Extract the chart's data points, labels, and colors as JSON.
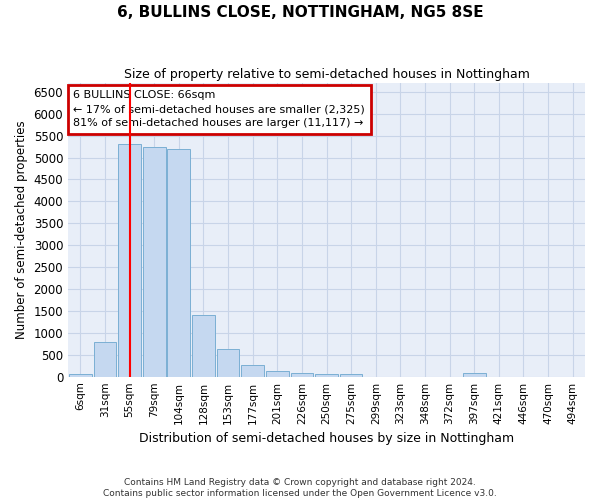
{
  "title": "6, BULLINS CLOSE, NOTTINGHAM, NG5 8SE",
  "subtitle": "Size of property relative to semi-detached houses in Nottingham",
  "xlabel": "Distribution of semi-detached houses by size in Nottingham",
  "ylabel": "Number of semi-detached properties",
  "footer_line1": "Contains HM Land Registry data © Crown copyright and database right 2024.",
  "footer_line2": "Contains public sector information licensed under the Open Government Licence v3.0.",
  "bar_color": "#c5d8f0",
  "bar_edge_color": "#7bafd4",
  "grid_color": "#c8d4e8",
  "background_color": "#e8eef8",
  "red_line_index": 2,
  "annotation_line1": "6 BULLINS CLOSE: 66sqm",
  "annotation_line2": "← 17% of semi-detached houses are smaller (2,325)",
  "annotation_line3": "81% of semi-detached houses are larger (11,117) →",
  "annotation_box_color": "#ffffff",
  "annotation_box_edge": "#cc0000",
  "categories": [
    "6sqm",
    "31sqm",
    "55sqm",
    "79sqm",
    "104sqm",
    "128sqm",
    "153sqm",
    "177sqm",
    "201sqm",
    "226sqm",
    "250sqm",
    "275sqm",
    "299sqm",
    "323sqm",
    "348sqm",
    "372sqm",
    "397sqm",
    "421sqm",
    "446sqm",
    "470sqm",
    "494sqm"
  ],
  "values": [
    50,
    790,
    5310,
    5250,
    5190,
    1410,
    630,
    260,
    130,
    80,
    70,
    60,
    0,
    0,
    0,
    0,
    80,
    0,
    0,
    0,
    0
  ],
  "ylim": [
    0,
    6700
  ],
  "yticks": [
    0,
    500,
    1000,
    1500,
    2000,
    2500,
    3000,
    3500,
    4000,
    4500,
    5000,
    5500,
    6000,
    6500
  ]
}
